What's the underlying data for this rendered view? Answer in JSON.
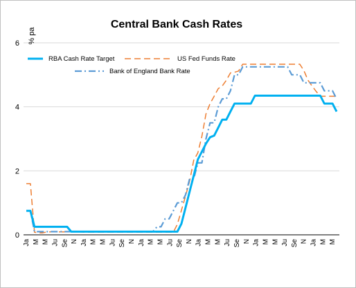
{
  "chart_data": {
    "type": "line",
    "title": "Central Bank Cash Rates",
    "ylabel": "% pa",
    "xlabel": "",
    "ylim": [
      0,
      6
    ],
    "yticks": [
      0,
      2,
      4,
      6
    ],
    "grid": "horizontal",
    "legend": "top-left",
    "x_tick_labels": [
      "Ja",
      "M",
      "M",
      "Ju",
      "Se",
      "N",
      "Ja",
      "M",
      "M",
      "Ju",
      "Se",
      "N",
      "Ja",
      "M",
      "M",
      "Ju",
      "Se",
      "N",
      "Ja",
      "M",
      "M",
      "Ju",
      "Se",
      "N",
      "Ja",
      "M",
      "M",
      "Ju",
      "Se",
      "N",
      "Ja",
      "M",
      "M"
    ],
    "series": [
      {
        "name": "RBA Cash Rate Target",
        "color": "#00B0F0",
        "style": "solid",
        "values": [
          0.75,
          0.75,
          0.25,
          0.25,
          0.25,
          0.25,
          0.25,
          0.25,
          0.25,
          0.25,
          0.25,
          0.1,
          0.1,
          0.1,
          0.1,
          0.1,
          0.1,
          0.1,
          0.1,
          0.1,
          0.1,
          0.1,
          0.1,
          0.1,
          0.1,
          0.1,
          0.1,
          0.1,
          0.1,
          0.1,
          0.1,
          0.1,
          0.1,
          0.1,
          0.1,
          0.1,
          0.1,
          0.1,
          0.35,
          0.85,
          1.35,
          1.85,
          2.35,
          2.6,
          2.85,
          3.05,
          3.1,
          3.35,
          3.6,
          3.6,
          3.85,
          4.1,
          4.1,
          4.1,
          4.1,
          4.1,
          4.35,
          4.35,
          4.35,
          4.35,
          4.35,
          4.35,
          4.35,
          4.35,
          4.35,
          4.35,
          4.35,
          4.35,
          4.35,
          4.35,
          4.35,
          4.35,
          4.35,
          4.1,
          4.1,
          4.1,
          3.85
        ]
      },
      {
        "name": "US Fed Funds Rate",
        "color": "#ED7D31",
        "style": "dashed",
        "values": [
          1.6,
          1.6,
          0.08,
          0.06,
          0.06,
          0.09,
          0.09,
          0.09,
          0.09,
          0.09,
          0.09,
          0.09,
          0.09,
          0.09,
          0.08,
          0.08,
          0.08,
          0.08,
          0.08,
          0.08,
          0.08,
          0.08,
          0.08,
          0.08,
          0.08,
          0.08,
          0.08,
          0.08,
          0.08,
          0.08,
          0.08,
          0.08,
          0.08,
          0.08,
          0.08,
          0.08,
          0.08,
          0.33,
          0.77,
          1.21,
          1.68,
          2.33,
          2.56,
          3.08,
          3.78,
          4.1,
          4.33,
          4.57,
          4.65,
          4.83,
          5.06,
          5.08,
          5.12,
          5.33,
          5.33,
          5.33,
          5.33,
          5.33,
          5.33,
          5.33,
          5.33,
          5.33,
          5.33,
          5.33,
          5.33,
          5.33,
          5.33,
          5.33,
          5.13,
          4.83,
          4.65,
          4.48,
          4.33,
          4.33,
          4.33,
          4.33,
          4.33
        ]
      },
      {
        "name": "Bank of England Bank Rate",
        "color": "#5B9BD5",
        "style": "dashdot",
        "values": [
          0.75,
          0.75,
          0.1,
          0.1,
          0.1,
          0.1,
          0.1,
          0.1,
          0.1,
          0.1,
          0.1,
          0.1,
          0.1,
          0.1,
          0.1,
          0.1,
          0.1,
          0.1,
          0.1,
          0.1,
          0.1,
          0.1,
          0.1,
          0.1,
          0.1,
          0.1,
          0.1,
          0.1,
          0.1,
          0.1,
          0.1,
          0.1,
          0.25,
          0.25,
          0.5,
          0.5,
          0.75,
          1.0,
          1.0,
          1.25,
          1.75,
          1.75,
          2.25,
          2.25,
          3.0,
          3.5,
          3.5,
          4.0,
          4.25,
          4.25,
          4.5,
          5.0,
          5.0,
          5.25,
          5.25,
          5.25,
          5.25,
          5.25,
          5.25,
          5.25,
          5.25,
          5.25,
          5.25,
          5.25,
          5.25,
          5.0,
          5.0,
          5.0,
          4.75,
          4.75,
          4.75,
          4.75,
          4.75,
          4.5,
          4.5,
          4.5,
          4.25
        ]
      }
    ]
  }
}
